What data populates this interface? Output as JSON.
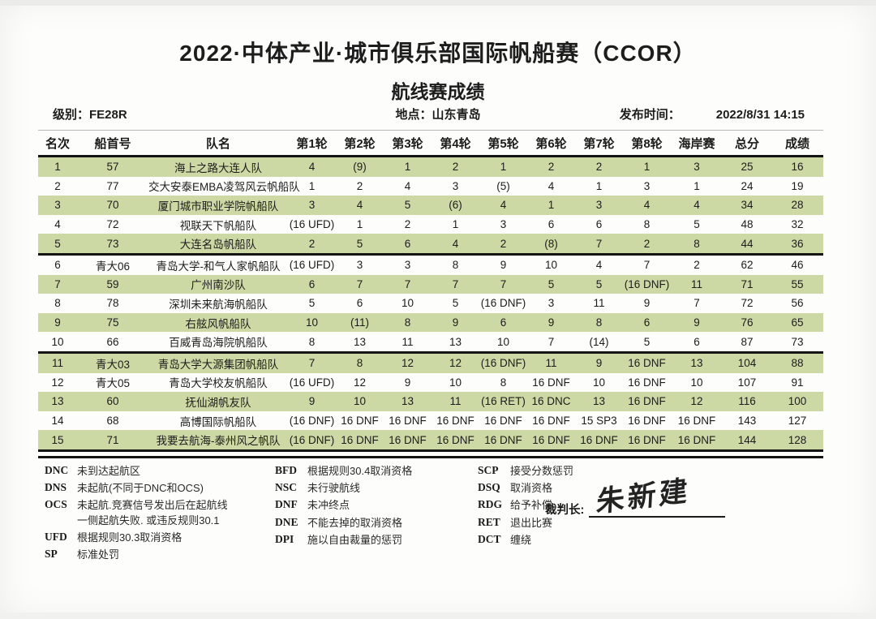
{
  "header": {
    "title": "2022·中体产业·城市俱乐部国际帆船赛（CCOR）",
    "subtitle": "航线赛成绩",
    "meta": {
      "class_label": "级别：",
      "class_value": "FE28R",
      "location_label": "地点：",
      "location_value": "山东青岛",
      "publish_label": "发布时间：",
      "publish_value": "2022/8/31 14:15"
    }
  },
  "table": {
    "columns": [
      "名次",
      "船首号",
      "队名",
      "第1轮",
      "第2轮",
      "第3轮",
      "第4轮",
      "第5轮",
      "第6轮",
      "第7轮",
      "第8轮",
      "海岸赛",
      "总分",
      "成绩"
    ],
    "rows": [
      [
        "1",
        "57",
        "海上之路大连人队",
        "4",
        "(9)",
        "1",
        "2",
        "1",
        "2",
        "2",
        "1",
        "3",
        "25",
        "16"
      ],
      [
        "2",
        "77",
        "交大安泰EMBA凌驾风云帆船队",
        "1",
        "2",
        "4",
        "3",
        "(5)",
        "4",
        "1",
        "3",
        "1",
        "24",
        "19"
      ],
      [
        "3",
        "70",
        "厦门城市职业学院帆船队",
        "3",
        "4",
        "5",
        "(6)",
        "4",
        "1",
        "3",
        "4",
        "4",
        "34",
        "28"
      ],
      [
        "4",
        "72",
        "视联天下帆船队",
        "(16 UFD)",
        "1",
        "2",
        "1",
        "3",
        "6",
        "6",
        "8",
        "5",
        "48",
        "32"
      ],
      [
        "5",
        "73",
        "大连名岛帆船队",
        "2",
        "5",
        "6",
        "4",
        "2",
        "(8)",
        "7",
        "2",
        "8",
        "44",
        "36"
      ],
      [
        "6",
        "青大06",
        "青岛大学-和气人家帆船队",
        "(16 UFD)",
        "3",
        "3",
        "8",
        "9",
        "10",
        "4",
        "7",
        "2",
        "62",
        "46"
      ],
      [
        "7",
        "59",
        "广州南沙队",
        "6",
        "7",
        "7",
        "7",
        "7",
        "5",
        "5",
        "(16 DNF)",
        "11",
        "71",
        "55"
      ],
      [
        "8",
        "78",
        "深圳未来航海帆船队",
        "5",
        "6",
        "10",
        "5",
        "(16 DNF)",
        "3",
        "11",
        "9",
        "7",
        "72",
        "56"
      ],
      [
        "9",
        "75",
        "右舷风帆船队",
        "10",
        "(11)",
        "8",
        "9",
        "6",
        "9",
        "8",
        "6",
        "9",
        "76",
        "65"
      ],
      [
        "10",
        "66",
        "百威青岛海院帆船队",
        "8",
        "13",
        "11",
        "13",
        "10",
        "7",
        "(14)",
        "5",
        "6",
        "87",
        "73"
      ],
      [
        "11",
        "青大03",
        "青岛大学大源集团帆船队",
        "7",
        "8",
        "12",
        "12",
        "(16 DNF)",
        "11",
        "9",
        "16 DNF",
        "13",
        "104",
        "88"
      ],
      [
        "12",
        "青大05",
        "青岛大学校友帆船队",
        "(16 UFD)",
        "12",
        "9",
        "10",
        "8",
        "16 DNF",
        "10",
        "16 DNF",
        "10",
        "107",
        "91"
      ],
      [
        "13",
        "60",
        "抚仙湖帆友队",
        "9",
        "10",
        "13",
        "11",
        "(16 RET)",
        "16 DNC",
        "13",
        "16 DNF",
        "12",
        "116",
        "100"
      ],
      [
        "14",
        "68",
        "高博国际帆船队",
        "(16 DNF)",
        "16 DNF",
        "16 DNF",
        "16 DNF",
        "16 DNF",
        "16 DNF",
        "15 SP3",
        "16 DNF",
        "16 DNF",
        "143",
        "127"
      ],
      [
        "15",
        "71",
        "我要去航海-泰州风之帆队",
        "(16 DNF)",
        "16 DNF",
        "16 DNF",
        "16 DNF",
        "16 DNF",
        "16 DNF",
        "16 DNF",
        "16 DNF",
        "16 DNF",
        "144",
        "128"
      ]
    ]
  },
  "legend": {
    "columns": [
      [
        {
          "code": "DNC",
          "desc": "未到达起航区"
        },
        {
          "code": "DNS",
          "desc": "未起航(不同于DNC和OCS)"
        },
        {
          "code": "OCS",
          "desc": "未起航.竞赛信号发出后在起航线\n一侧起航失败. 或违反规则30.1"
        },
        {
          "code": "UFD",
          "desc": "根据规则30.3取消资格"
        },
        {
          "code": "SP",
          "desc": "标准处罚"
        }
      ],
      [
        {
          "code": "BFD",
          "desc": "根据规则30.4取消资格"
        },
        {
          "code": "NSC",
          "desc": "未行驶航线"
        },
        {
          "code": "DNF",
          "desc": "未冲终点"
        },
        {
          "code": "DNE",
          "desc": "不能去掉的取消资格"
        },
        {
          "code": "DPI",
          "desc": "施以自由裁量的惩罚"
        }
      ],
      [
        {
          "code": "SCP",
          "desc": "接受分数惩罚"
        },
        {
          "code": "DSQ",
          "desc": "取消资格"
        },
        {
          "code": "RDG",
          "desc": "给予补偿"
        },
        {
          "code": "RET",
          "desc": "退出比赛"
        },
        {
          "code": "DCT",
          "desc": "缠绕"
        }
      ]
    ]
  },
  "signature": {
    "label": "裁判长:",
    "name": "朱新建"
  },
  "colors": {
    "zebra_green": "#cdd9a4",
    "rule_black": "#141414",
    "text": "#1c1c1c"
  }
}
